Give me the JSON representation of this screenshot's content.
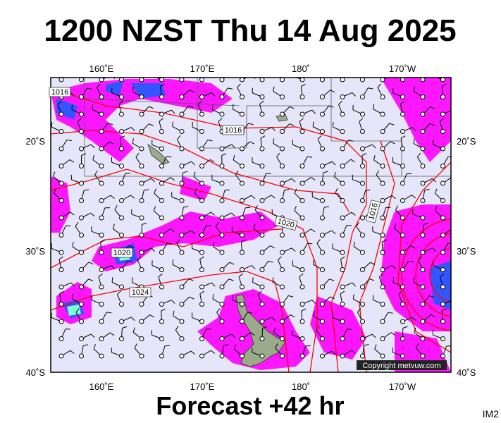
{
  "title": "1200 NZST Thu 14 Aug 2025",
  "top_axis": [
    "160˚E",
    "170˚E",
    "180˚",
    "170˚W"
  ],
  "bottom_axis": [
    "160˚E",
    "170˚E",
    "180˚",
    "170˚W"
  ],
  "left_axis": [
    "20˚S",
    "30˚S",
    "40˚S"
  ],
  "right_axis": [
    "20˚S",
    "30˚S",
    "40˚S"
  ],
  "isobar_labels": [
    "1016",
    "1016",
    "1016",
    "1020",
    "1020",
    "1024"
  ],
  "copyright": "Copyright metvuw.com",
  "footer": "Forecast +42 hr",
  "code": "IM2"
}
